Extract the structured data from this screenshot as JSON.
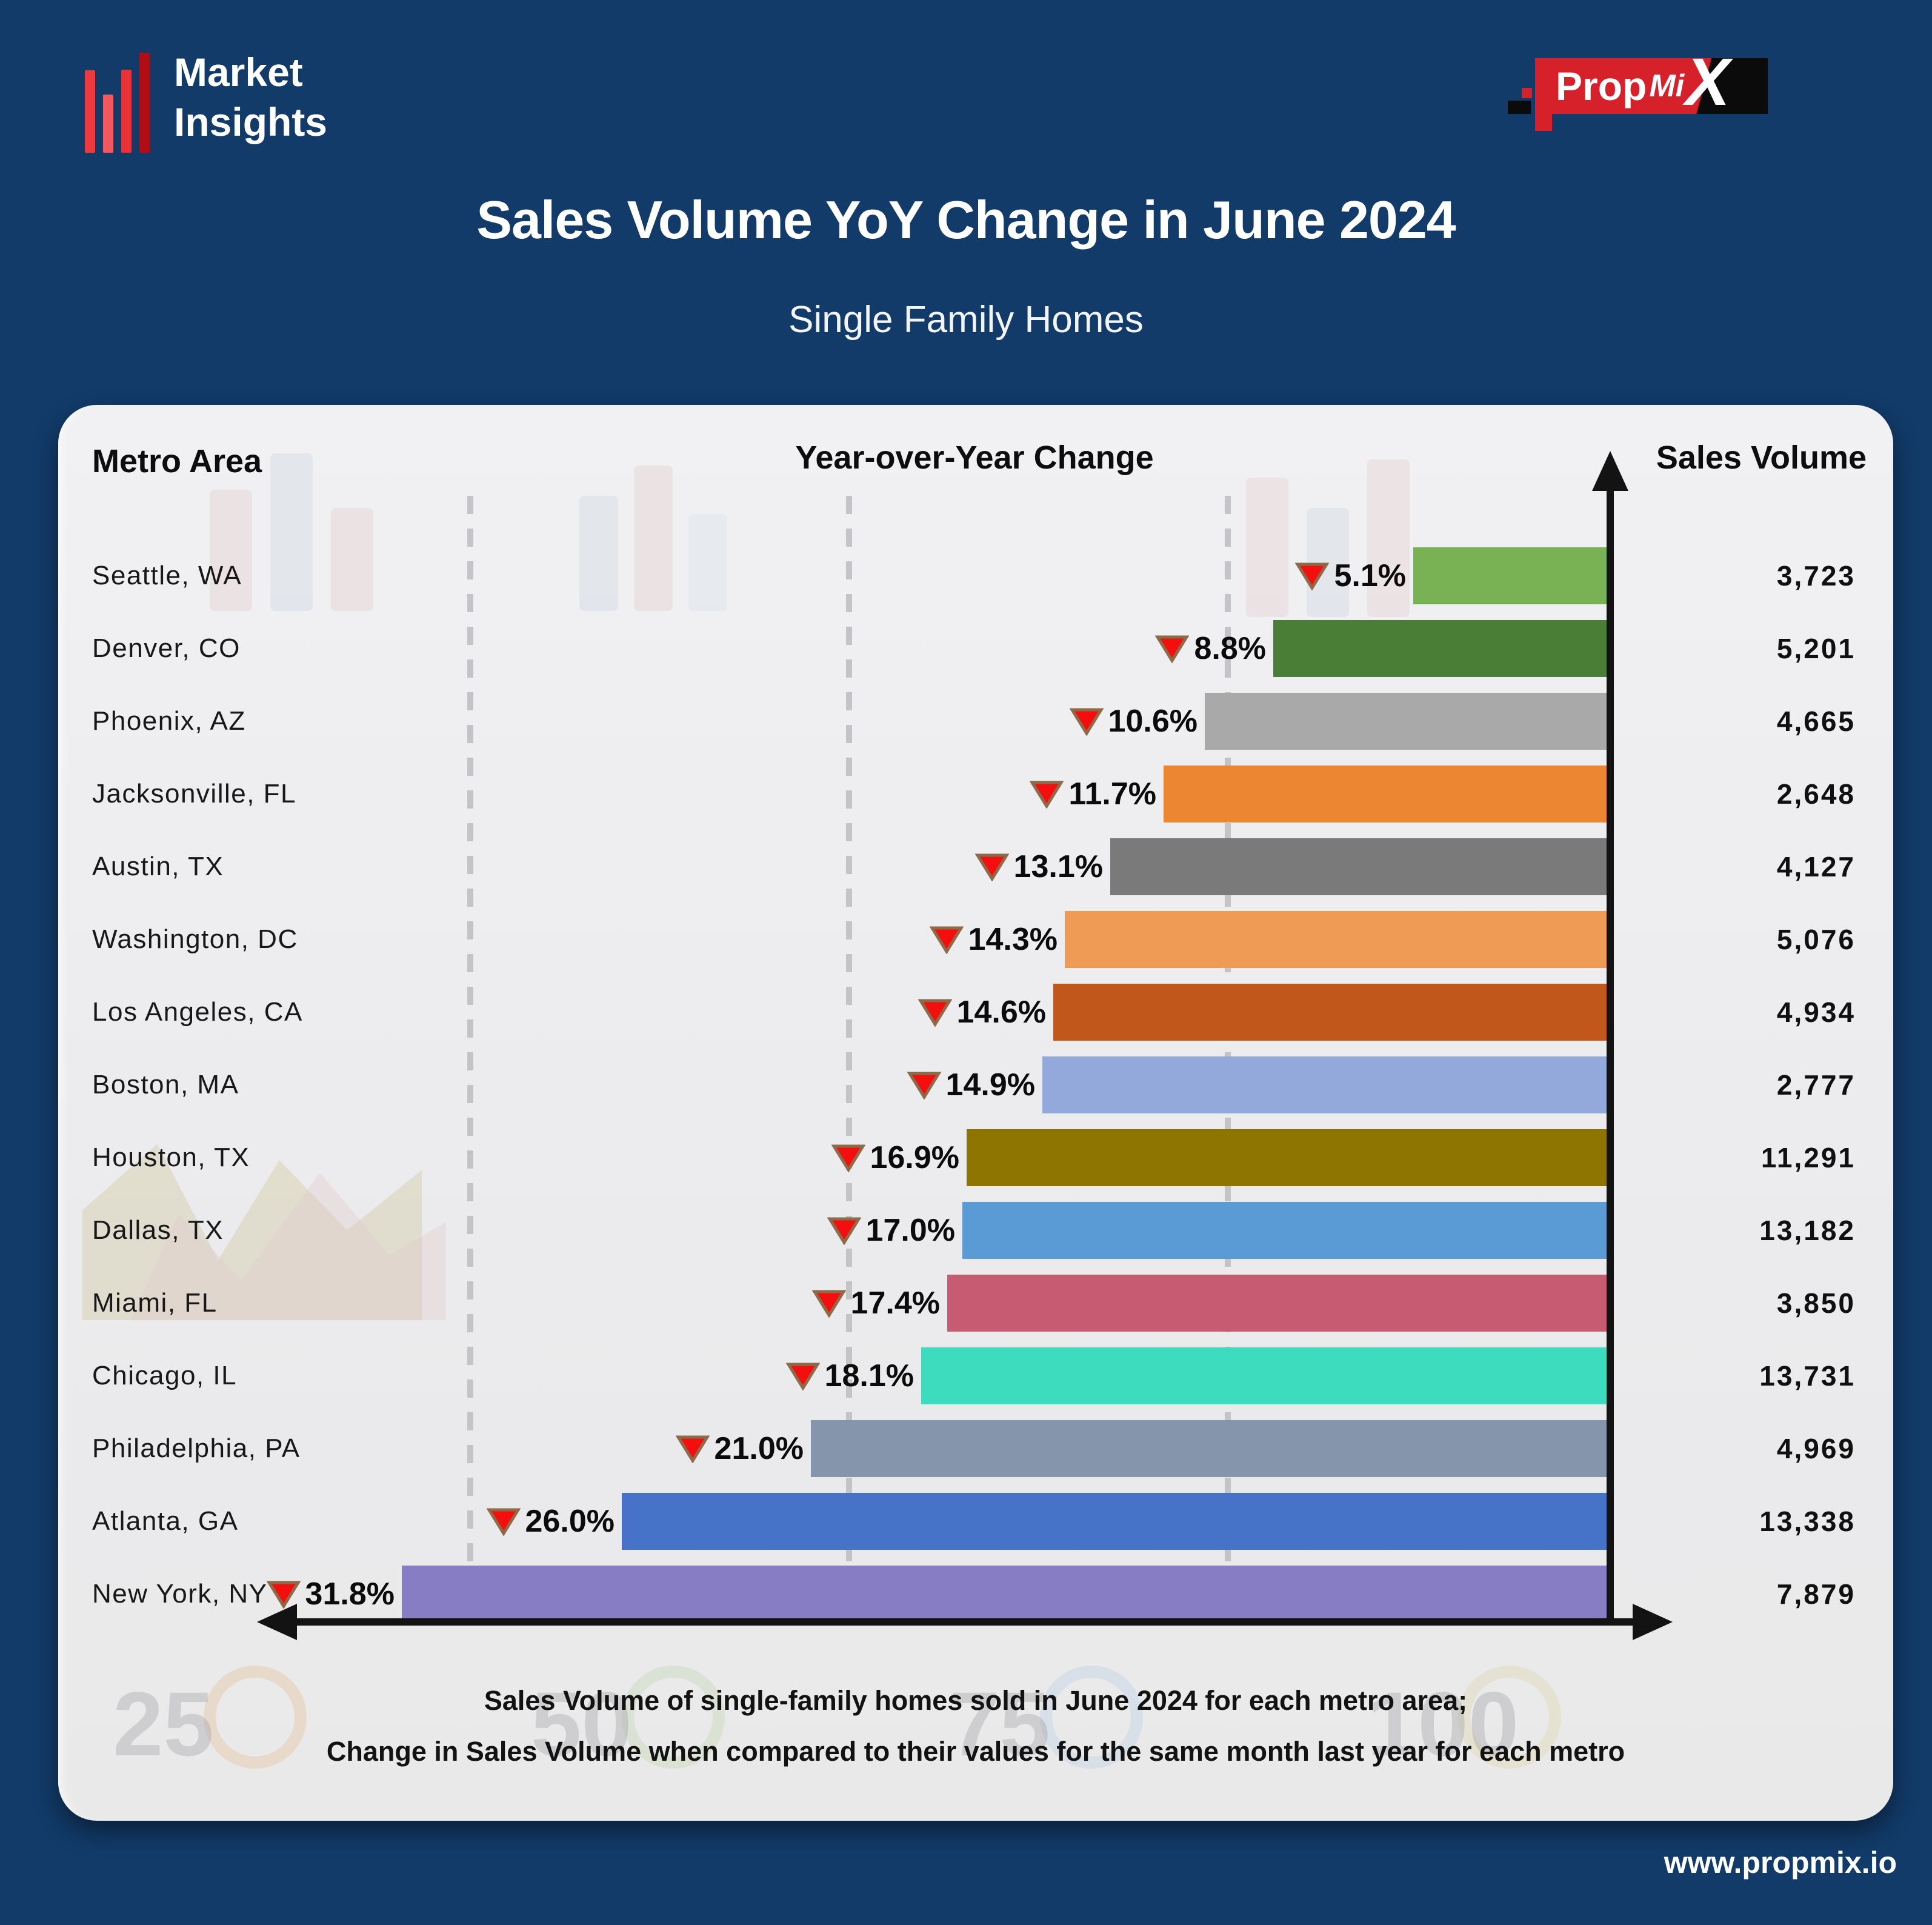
{
  "brand": {
    "logo_line1": "Market",
    "logo_line2": "Insights",
    "logo_bar_colors": [
      "#ee3a3e",
      "#f2595e",
      "#e93237",
      "#b00d15"
    ],
    "partner_logo": {
      "prop": "Prop",
      "mi": "Mi",
      "x": "X",
      "red": "#d6212b",
      "black": "#0b0b0b"
    }
  },
  "header": {
    "title": "Sales Volume YoY Change in June 2024",
    "subtitle": "Single Family Homes"
  },
  "table_headers": {
    "metro": "Metro Area",
    "yoy": "Year-over-Year Change",
    "volume": "Sales Volume"
  },
  "chart_data": {
    "type": "bar",
    "orientation": "horizontal, bars anchored to right value axis, length = % decline",
    "value_label": "Year-over-Year Change (% decline, red down triangle = decrease)",
    "gridlines_pct": [
      10,
      20,
      30
    ],
    "xlim_pct": [
      0,
      33
    ],
    "rows": [
      {
        "metro": "Seattle, WA",
        "yoy_change_pct": -5.1,
        "yoy_label": "5.1%",
        "sales_volume": "3,723",
        "color": "#79B254"
      },
      {
        "metro": "Denver, CO",
        "yoy_change_pct": -8.8,
        "yoy_label": "8.8%",
        "sales_volume": "5,201",
        "color": "#4A7D36"
      },
      {
        "metro": "Phoenix, AZ",
        "yoy_change_pct": -10.6,
        "yoy_label": "10.6%",
        "sales_volume": "4,665",
        "color": "#A9A9A9"
      },
      {
        "metro": "Jacksonville, FL",
        "yoy_change_pct": -11.7,
        "yoy_label": "11.7%",
        "sales_volume": "2,648",
        "color": "#EC8633"
      },
      {
        "metro": "Austin, TX",
        "yoy_change_pct": -13.1,
        "yoy_label": "13.1%",
        "sales_volume": "4,127",
        "color": "#7A7A7A"
      },
      {
        "metro": "Washington, DC",
        "yoy_change_pct": -14.3,
        "yoy_label": "14.3%",
        "sales_volume": "5,076",
        "color": "#F09B55"
      },
      {
        "metro": "Los Angeles, CA",
        "yoy_change_pct": -14.6,
        "yoy_label": "14.6%",
        "sales_volume": "4,934",
        "color": "#C2571B"
      },
      {
        "metro": "Boston, MA",
        "yoy_change_pct": -14.9,
        "yoy_label": "14.9%",
        "sales_volume": "2,777",
        "color": "#93A9DB"
      },
      {
        "metro": "Houston, TX",
        "yoy_change_pct": -16.9,
        "yoy_label": "16.9%",
        "sales_volume": "11,291",
        "color": "#8E7501"
      },
      {
        "metro": "Dallas, TX",
        "yoy_change_pct": -17.0,
        "yoy_label": "17.0%",
        "sales_volume": "13,182",
        "color": "#5B9BD5"
      },
      {
        "metro": "Miami, FL",
        "yoy_change_pct": -17.4,
        "yoy_label": "17.4%",
        "sales_volume": "3,850",
        "color": "#C65B72"
      },
      {
        "metro": "Chicago, IL",
        "yoy_change_pct": -18.1,
        "yoy_label": "18.1%",
        "sales_volume": "13,731",
        "color": "#3EDCBE"
      },
      {
        "metro": "Philadelphia, PA",
        "yoy_change_pct": -21.0,
        "yoy_label": "21.0%",
        "sales_volume": "4,969",
        "color": "#8495AC"
      },
      {
        "metro": "Atlanta, GA",
        "yoy_change_pct": -26.0,
        "yoy_label": "26.0%",
        "sales_volume": "13,338",
        "color": "#4673C8"
      },
      {
        "metro": "New York, NY",
        "yoy_change_pct": -31.8,
        "yoy_label": "31.8%",
        "sales_volume": "7,879",
        "color": "#877DC4"
      }
    ],
    "direction_icon": "red-down-triangle",
    "triangle_fill": "#F40F0F",
    "triangle_stroke": "#8D6B4A"
  },
  "footer": {
    "line1": "Sales Volume of single-family homes sold in June 2024 for each metro area;",
    "line2": "Change in Sales Volume when compared to their values for the same month last year for each metro"
  },
  "site": {
    "url": "www.propmix.io"
  },
  "watermark": {
    "numbers": [
      "25",
      "50",
      "75",
      "100"
    ]
  },
  "colors": {
    "background": "#123B69",
    "card": "#ECECEE",
    "axis": "#131313",
    "gridline": "#BDBDC0"
  }
}
